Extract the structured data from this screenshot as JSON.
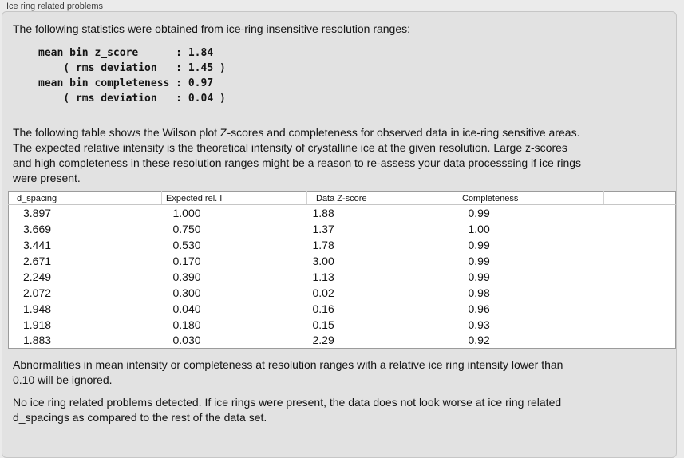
{
  "colors": {
    "page_bg": "#ebebeb",
    "panel_bg": "#e2e2e2",
    "panel_border": "#c6c6c6",
    "text": "#141414",
    "title_text": "#3a3a3a",
    "table_bg": "#ffffff",
    "table_border": "#9b9b9b",
    "header_sep": "#d2d2d2",
    "header_line": "#c6c6c6"
  },
  "panel": {
    "title": "Ice ring related problems"
  },
  "intro": "The following statistics were obtained from ice-ring insensitive resolution ranges:",
  "stats_block": "mean bin z_score      : 1.84\n    ( rms deviation   : 1.45 )\nmean bin completeness : 0.97\n    ( rms deviation   : 0.04 )",
  "stats": {
    "mean_bin_z_score": "1.84",
    "z_score_rms_deviation": "1.45",
    "mean_bin_completeness": "0.97",
    "completeness_rms_deviation": "0.04"
  },
  "table_description": "The following table shows the Wilson plot Z-scores and completeness for observed data in ice-ring sensitive areas.\nThe expected relative intensity is the theoretical intensity of crystalline ice at the given resolution. Large z-scores\nand high completeness in these resolution ranges might be a reason to re-assess your data processsing if ice rings\nwere present.",
  "table": {
    "headers": [
      "d_spacing",
      "Expected rel. I",
      "Data Z-score",
      "Completeness",
      ""
    ],
    "rows": [
      [
        "3.897",
        "1.000",
        "1.88",
        "0.99"
      ],
      [
        "3.669",
        "0.750",
        "1.37",
        "1.00"
      ],
      [
        "3.441",
        "0.530",
        "1.78",
        "0.99"
      ],
      [
        "2.671",
        "0.170",
        "3.00",
        "0.99"
      ],
      [
        "2.249",
        "0.390",
        "1.13",
        "0.99"
      ],
      [
        "2.072",
        "0.300",
        "0.02",
        "0.98"
      ],
      [
        "1.948",
        "0.040",
        "0.16",
        "0.96"
      ],
      [
        "1.918",
        "0.180",
        "0.15",
        "0.93"
      ],
      [
        "1.883",
        "0.030",
        "2.29",
        "0.92"
      ]
    ]
  },
  "ignore_note": "Abnormalities in mean intensity or completeness at resolution ranges with a relative ice ring intensity lower than\n0.10 will be ignored.",
  "conclusion": "No ice ring related problems detected. If ice rings were present, the data does not look worse at ice ring related\nd_spacings as compared to the rest of the data set."
}
